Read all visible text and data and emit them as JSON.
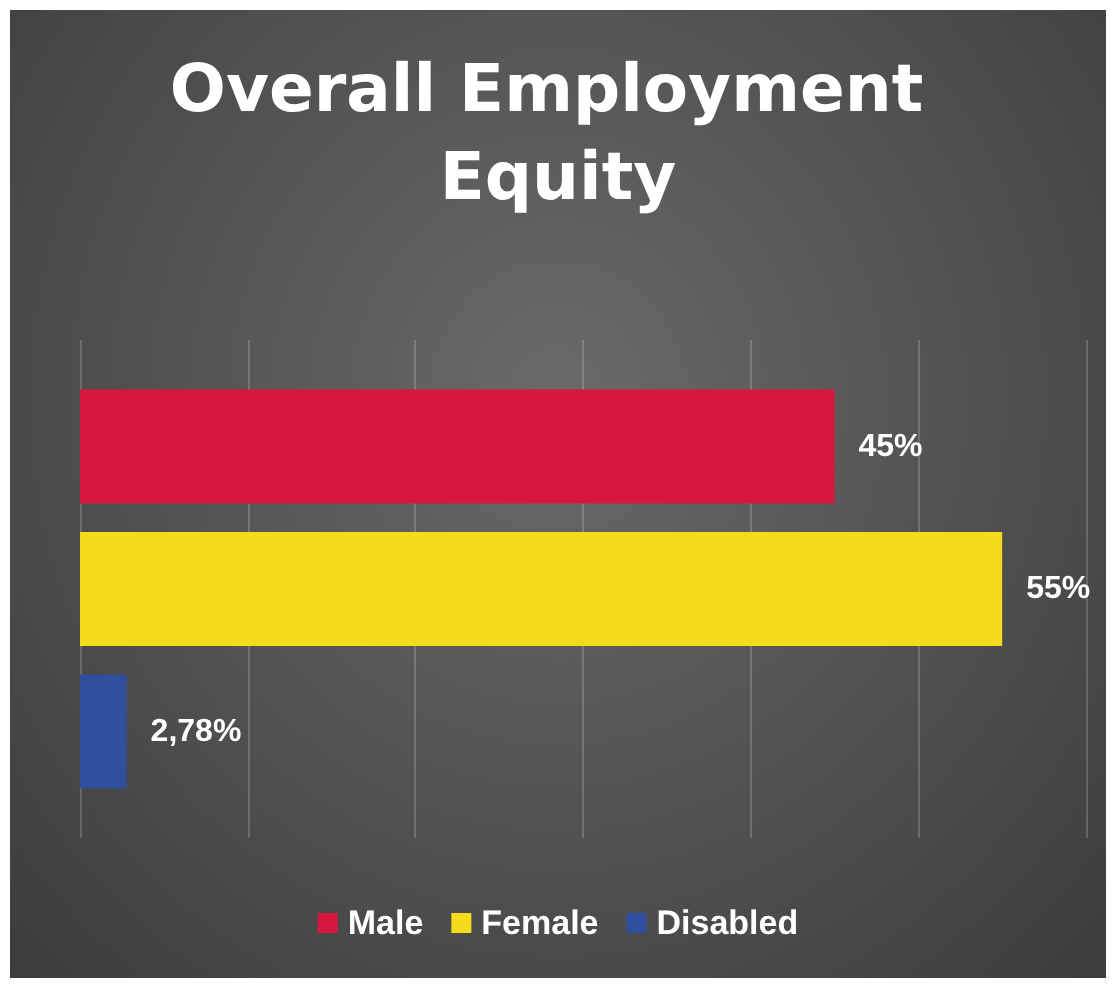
{
  "chart_data": {
    "type": "bar",
    "orientation": "horizontal",
    "title": "Overall Employment Equity",
    "categories": [
      null
    ],
    "series": [
      {
        "name": "Male",
        "color": "#d8173e",
        "values": [
          45
        ],
        "value_labels": [
          "45%"
        ]
      },
      {
        "name": "Female",
        "color": "#f4dc1c",
        "values": [
          55
        ],
        "value_labels": [
          "55%"
        ]
      },
      {
        "name": "Disabled",
        "color": "#2f4f9e",
        "values": [
          2.78
        ],
        "value_labels": [
          "2,78%"
        ]
      }
    ],
    "xlim": [
      0,
      60
    ],
    "xticks": [
      {
        "value": 0,
        "label": null
      },
      {
        "value": 10,
        "label": null
      },
      {
        "value": 20,
        "label": null
      },
      {
        "value": 30,
        "label": null
      },
      {
        "value": 40,
        "label": null
      },
      {
        "value": 50,
        "label": null
      },
      {
        "value": 60,
        "label": null
      }
    ],
    "grid": "x",
    "legend": "bottom"
  }
}
